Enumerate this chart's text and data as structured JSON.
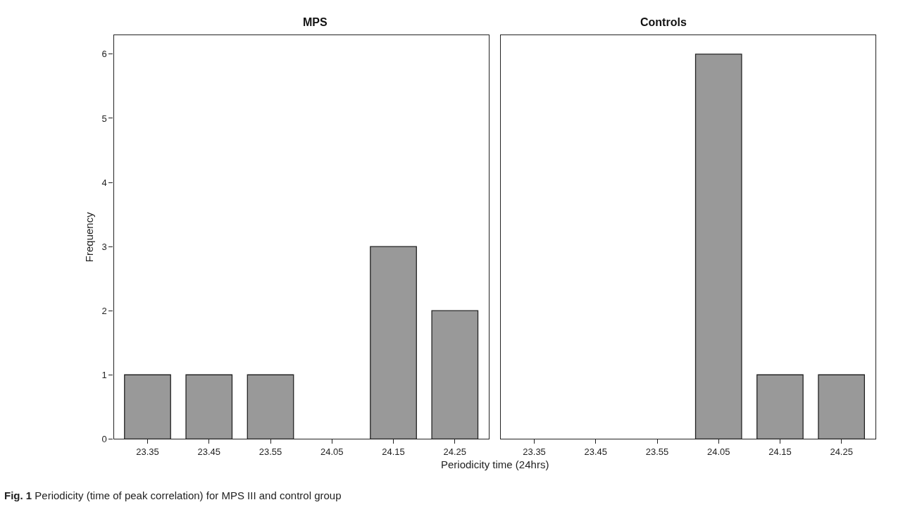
{
  "chart_data": [
    {
      "type": "bar",
      "title": "MPS",
      "xlabel": "Periodicity time (24hrs)",
      "ylabel": "Frequency",
      "categories": [
        "23.35",
        "23.45",
        "23.55",
        "24.05",
        "24.15",
        "24.25"
      ],
      "values": [
        1,
        1,
        1,
        0,
        3,
        2
      ],
      "color": "#999999",
      "ylim": [
        0,
        6.3
      ],
      "yticks": [
        0,
        1,
        2,
        3,
        4,
        5,
        6
      ],
      "annotations": [
        "**Fig. 1** Periodicity (time of peak correlation) for MPS III and control group"
      ]
    },
    {
      "type": "bar",
      "title": "Controls",
      "categories": [
        "23.35",
        "23.45",
        "23.55",
        "24.05",
        "24.15",
        "24.25"
      ],
      "values": [
        0,
        0,
        0,
        6,
        1,
        1
      ],
      "color": "#999999",
      "ylim": [
        0,
        6.3
      ],
      "yticks": [
        0,
        1,
        2,
        3,
        4,
        5,
        6
      ],
      "tick_labels": "x"
    }
  ]
}
